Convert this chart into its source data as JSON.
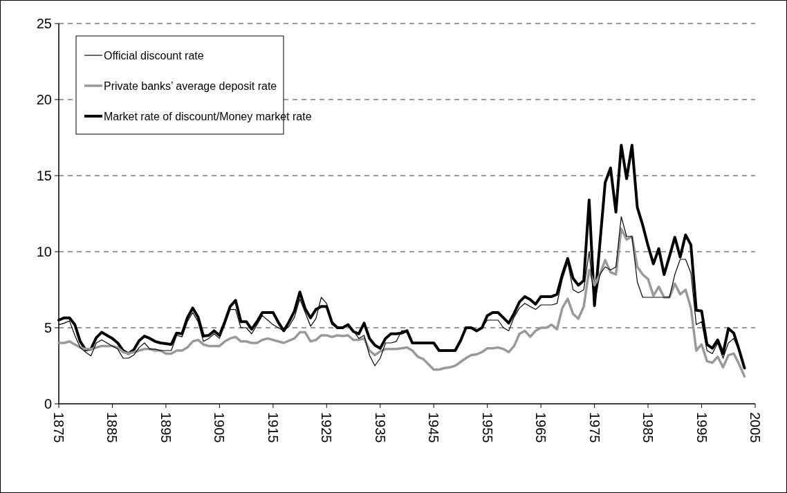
{
  "chart_data": {
    "type": "line",
    "x": [
      1875,
      1876,
      1877,
      1878,
      1879,
      1880,
      1881,
      1882,
      1883,
      1884,
      1885,
      1886,
      1887,
      1888,
      1889,
      1890,
      1891,
      1892,
      1893,
      1894,
      1895,
      1896,
      1897,
      1898,
      1899,
      1900,
      1901,
      1902,
      1903,
      1904,
      1905,
      1906,
      1907,
      1908,
      1909,
      1910,
      1911,
      1912,
      1913,
      1914,
      1915,
      1916,
      1917,
      1918,
      1919,
      1920,
      1921,
      1922,
      1923,
      1924,
      1925,
      1926,
      1927,
      1928,
      1929,
      1930,
      1931,
      1932,
      1933,
      1934,
      1935,
      1936,
      1937,
      1938,
      1939,
      1940,
      1941,
      1942,
      1943,
      1944,
      1945,
      1946,
      1947,
      1948,
      1949,
      1950,
      1951,
      1952,
      1953,
      1954,
      1955,
      1956,
      1957,
      1958,
      1959,
      1960,
      1961,
      1962,
      1963,
      1964,
      1965,
      1966,
      1967,
      1968,
      1969,
      1970,
      1971,
      1972,
      1973,
      1974,
      1975,
      1976,
      1977,
      1978,
      1979,
      1980,
      1981,
      1982,
      1983,
      1984,
      1985,
      1986,
      1987,
      1988,
      1989,
      1990,
      1991,
      1992,
      1993,
      1994,
      1995,
      1996,
      1997,
      1998,
      1999,
      2000,
      2001,
      2002,
      2003
    ],
    "series": [
      {
        "name": "Official discount rate",
        "color": "#000000",
        "values": [
          5.2,
          5.3,
          5.45,
          4.5,
          3.7,
          3.4,
          3.15,
          4.0,
          4.2,
          4.0,
          3.8,
          3.6,
          3.0,
          3.0,
          3.2,
          3.7,
          4.0,
          3.6,
          3.6,
          3.5,
          3.5,
          3.5,
          4.5,
          4.4,
          5.4,
          6.0,
          5.4,
          4.1,
          4.3,
          4.6,
          4.3,
          5.2,
          6.2,
          6.2,
          5.0,
          5.0,
          4.6,
          5.2,
          5.8,
          5.5,
          5.2,
          5.0,
          4.8,
          5.1,
          5.7,
          6.9,
          6.0,
          5.1,
          5.6,
          7.0,
          6.6,
          5.2,
          5.0,
          5.0,
          5.2,
          4.8,
          4.3,
          4.5,
          3.2,
          2.5,
          3.0,
          4.0,
          4.0,
          4.1,
          4.8,
          4.8,
          4.0,
          4.0,
          4.0,
          4.0,
          4.0,
          3.5,
          3.5,
          3.5,
          3.5,
          4.1,
          5.0,
          5.0,
          4.8,
          5.0,
          5.5,
          5.5,
          5.5,
          5.0,
          4.8,
          5.7,
          6.3,
          6.6,
          6.4,
          6.2,
          6.5,
          6.5,
          6.5,
          6.6,
          8.2,
          9.3,
          7.5,
          7.3,
          7.5,
          10.0,
          6.5,
          8.5,
          9.0,
          8.8,
          9.0,
          12.3,
          11.0,
          11.0,
          8.0,
          7.0,
          7.0,
          7.0,
          7.0,
          7.0,
          7.0,
          8.5,
          9.5,
          9.5,
          8.6,
          5.2,
          5.4,
          3.5,
          3.3,
          4.0,
          3.0,
          4.0,
          4.3,
          3.5,
          2.4
        ]
      },
      {
        "name": "Private banks’ average deposit rate",
        "color": "#999999",
        "values": [
          4.0,
          4.0,
          4.1,
          3.9,
          3.7,
          3.6,
          3.6,
          3.7,
          3.8,
          3.8,
          3.8,
          3.7,
          3.4,
          3.3,
          3.4,
          3.5,
          3.6,
          3.6,
          3.5,
          3.5,
          3.3,
          3.3,
          3.5,
          3.5,
          3.7,
          4.1,
          4.2,
          3.9,
          3.8,
          3.8,
          3.8,
          4.1,
          4.3,
          4.4,
          4.1,
          4.1,
          4.0,
          4.0,
          4.2,
          4.3,
          4.2,
          4.1,
          4.0,
          4.15,
          4.3,
          4.7,
          4.7,
          4.1,
          4.2,
          4.5,
          4.5,
          4.4,
          4.5,
          4.45,
          4.5,
          4.2,
          4.2,
          4.3,
          3.5,
          3.2,
          3.45,
          3.6,
          3.6,
          3.6,
          3.65,
          3.7,
          3.5,
          3.1,
          2.95,
          2.6,
          2.25,
          2.25,
          2.35,
          2.4,
          2.5,
          2.75,
          3.0,
          3.2,
          3.25,
          3.4,
          3.65,
          3.65,
          3.7,
          3.6,
          3.4,
          3.8,
          4.6,
          4.8,
          4.4,
          4.8,
          5.0,
          5.0,
          5.2,
          4.9,
          6.3,
          6.9,
          5.9,
          5.6,
          6.4,
          8.8,
          7.8,
          8.5,
          9.45,
          8.65,
          8.5,
          11.5,
          10.8,
          11.0,
          9.0,
          8.5,
          8.2,
          7.1,
          7.7,
          7.0,
          7.0,
          7.9,
          7.2,
          7.5,
          6.3,
          3.5,
          3.9,
          2.8,
          2.7,
          3.1,
          2.4,
          3.2,
          3.3,
          2.6,
          1.8
        ]
      },
      {
        "name": "Market rate of discount/Money market rate",
        "color": "#000000",
        "values": [
          5.5,
          5.65,
          5.65,
          5.2,
          4.1,
          3.55,
          3.6,
          4.35,
          4.7,
          4.5,
          4.3,
          4.0,
          3.5,
          3.3,
          3.55,
          4.15,
          4.45,
          4.3,
          4.1,
          4.0,
          3.95,
          3.9,
          4.65,
          4.6,
          5.65,
          6.3,
          5.7,
          4.45,
          4.5,
          4.8,
          4.5,
          5.4,
          6.4,
          6.8,
          5.4,
          5.4,
          4.9,
          5.4,
          6.0,
          6.0,
          6.0,
          5.35,
          4.8,
          5.4,
          6.1,
          7.35,
          6.25,
          5.65,
          6.2,
          6.4,
          6.4,
          5.35,
          5.0,
          5.0,
          5.2,
          4.75,
          4.6,
          5.3,
          4.3,
          3.85,
          3.65,
          4.3,
          4.6,
          4.6,
          4.65,
          4.8,
          4.0,
          4.0,
          4.0,
          4.0,
          4.0,
          3.5,
          3.5,
          3.5,
          3.5,
          4.15,
          5.0,
          5.0,
          4.8,
          5.0,
          5.8,
          6.0,
          6.0,
          5.65,
          5.3,
          5.95,
          6.7,
          7.05,
          6.85,
          6.55,
          7.05,
          7.05,
          7.05,
          7.2,
          8.5,
          9.55,
          8.25,
          7.8,
          8.1,
          13.4,
          6.45,
          10.5,
          14.55,
          15.5,
          12.6,
          17.0,
          14.8,
          17.0,
          12.9,
          11.75,
          10.4,
          9.2,
          10.2,
          8.5,
          9.7,
          10.95,
          9.65,
          11.1,
          10.45,
          6.15,
          6.1,
          3.9,
          3.65,
          4.2,
          3.3,
          4.95,
          4.65,
          3.55,
          2.35
        ]
      }
    ],
    "xlim": [
      1875,
      2005
    ],
    "xticks": [
      1875,
      1885,
      1895,
      1905,
      1915,
      1925,
      1935,
      1945,
      1955,
      1965,
      1975,
      1985,
      1995,
      2005
    ],
    "ylim": [
      0,
      25
    ],
    "yticks": [
      0,
      5,
      10,
      15,
      20,
      25
    ],
    "grid": "y",
    "legend": "top left",
    "marker": "none",
    "line_style": "solid"
  }
}
